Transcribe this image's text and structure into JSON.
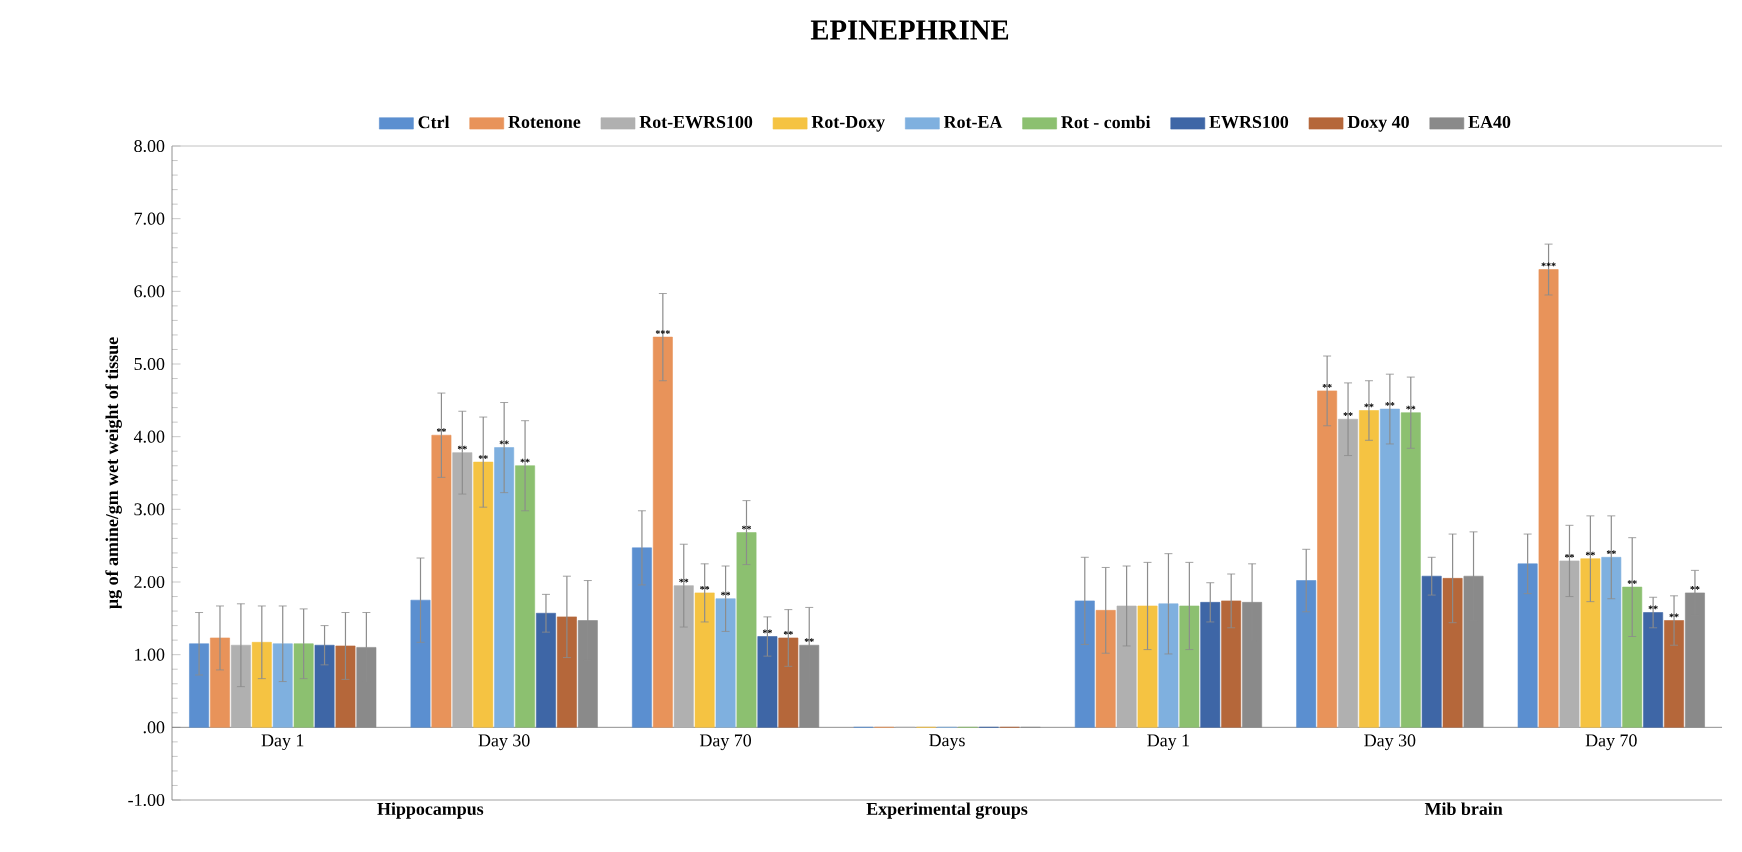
{
  "chart_data": {
    "type": "bar",
    "title": "EPINEPHRINE",
    "ylabel": "µg of amine/gm wet weight of tissue",
    "categories": [
      "Day 1",
      "Day 30",
      "Day 70",
      "Days",
      "Day 1",
      "Day 30",
      "Day 70"
    ],
    "legend": "top",
    "ylim": [
      -1,
      8
    ],
    "yticks": [
      {
        "value": -1,
        "label": "-1.00"
      },
      {
        "value": 0,
        "label": ".00"
      },
      {
        "value": 1,
        "label": "1.00"
      },
      {
        "value": 2,
        "label": "2.00"
      },
      {
        "value": 3,
        "label": "3.00"
      },
      {
        "value": 4,
        "label": "4.00"
      },
      {
        "value": 5,
        "label": "5.00"
      },
      {
        "value": 6,
        "label": "6.00"
      },
      {
        "value": 7,
        "label": "7.00"
      },
      {
        "value": 8,
        "label": "8.00"
      }
    ],
    "annotations": [
      "Hippocampus",
      "Experimental groups",
      "Mib brain"
    ],
    "series": [
      {
        "name": "Ctrl",
        "color": "#5b8fd0",
        "values": [
          1.15,
          1.75,
          2.47,
          0,
          1.74,
          2.02,
          2.25
        ],
        "errors": [
          0.43,
          0.58,
          0.51,
          null,
          0.6,
          0.43,
          0.41
        ],
        "value_labels": [
          null,
          null,
          null,
          null,
          null,
          null,
          null
        ]
      },
      {
        "name": "Rotenone",
        "color": "#e8935a",
        "values": [
          1.23,
          4.02,
          5.37,
          0,
          1.61,
          4.63,
          6.3
        ],
        "errors": [
          0.44,
          0.58,
          0.6,
          null,
          0.59,
          0.48,
          0.35
        ],
        "value_labels": [
          null,
          "**",
          "***",
          null,
          null,
          "**",
          "***"
        ]
      },
      {
        "name": "Rot-EWRS100",
        "color": "#b0b0b0",
        "values": [
          1.13,
          3.78,
          1.95,
          0,
          1.67,
          4.24,
          2.29
        ],
        "errors": [
          0.57,
          0.57,
          0.57,
          null,
          0.55,
          0.5,
          0.49
        ],
        "value_labels": [
          null,
          "**",
          "**",
          null,
          null,
          "**",
          "**"
        ]
      },
      {
        "name": "Rot-Doxy",
        "color": "#f5c342",
        "values": [
          1.17,
          3.65,
          1.85,
          0,
          1.67,
          4.36,
          2.32
        ],
        "errors": [
          0.5,
          0.62,
          0.4,
          null,
          0.6,
          0.41,
          0.59
        ],
        "value_labels": [
          null,
          "**",
          "**",
          null,
          null,
          "**",
          "**"
        ]
      },
      {
        "name": "Rot-EA",
        "color": "#7fb0df",
        "values": [
          1.15,
          3.85,
          1.77,
          0,
          1.7,
          4.38,
          2.34
        ],
        "errors": [
          0.52,
          0.62,
          0.45,
          null,
          0.69,
          0.48,
          0.57
        ],
        "value_labels": [
          null,
          "**",
          "**",
          null,
          null,
          "**",
          "**"
        ]
      },
      {
        "name": "Rot - combi",
        "color": "#8cc070",
        "values": [
          1.15,
          3.6,
          2.68,
          0,
          1.67,
          4.33,
          1.93
        ],
        "errors": [
          0.48,
          0.62,
          0.44,
          null,
          0.6,
          0.49,
          0.68
        ],
        "value_labels": [
          null,
          "**",
          "**",
          null,
          null,
          "**",
          "**"
        ]
      },
      {
        "name": "EWRS100",
        "color": "#3e66a6",
        "values": [
          1.13,
          1.57,
          1.25,
          0,
          1.72,
          2.08,
          1.58
        ],
        "errors": [
          0.27,
          0.26,
          0.27,
          null,
          0.27,
          0.26,
          0.21
        ],
        "value_labels": [
          null,
          null,
          "**",
          null,
          null,
          null,
          "**"
        ]
      },
      {
        "name": "Doxy 40",
        "color": "#b5673a",
        "values": [
          1.12,
          1.52,
          1.23,
          0,
          1.74,
          2.05,
          1.47
        ],
        "errors": [
          0.46,
          0.56,
          0.39,
          null,
          0.37,
          0.61,
          0.34
        ],
        "value_labels": [
          null,
          null,
          "**",
          null,
          null,
          null,
          "**"
        ]
      },
      {
        "name": "EA40",
        "color": "#8a8a8a",
        "values": [
          1.1,
          1.47,
          1.13,
          0,
          1.72,
          2.08,
          1.85
        ],
        "errors": [
          0.48,
          0.55,
          0.52,
          null,
          0.53,
          0.61,
          0.31
        ],
        "value_labels": [
          null,
          null,
          "**",
          null,
          null,
          null,
          "**"
        ]
      }
    ]
  }
}
